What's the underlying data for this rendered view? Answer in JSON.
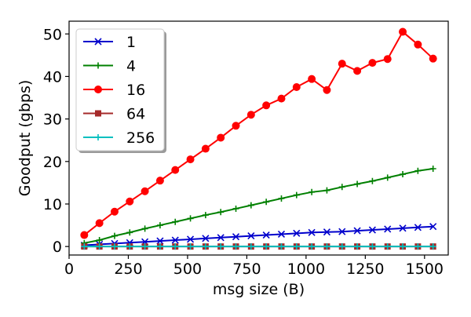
{
  "chart_data": {
    "type": "line",
    "xlabel": "msg size (B)",
    "ylabel": "Goodput (gbps)",
    "xlim": [
      0,
      1600
    ],
    "ylim": [
      -2,
      53
    ],
    "xticks": [
      0,
      250,
      500,
      750,
      1000,
      1250,
      1500
    ],
    "xtick_labels": [
      "0",
      "250",
      "500",
      "750",
      "1000",
      "1250",
      "1500"
    ],
    "yticks": [
      0,
      10,
      20,
      30,
      40,
      50
    ],
    "ytick_labels": [
      "0",
      "10",
      "20",
      "30",
      "40",
      "50"
    ],
    "grid": false,
    "legend_position": "top-left",
    "x": [
      64,
      128,
      192,
      256,
      320,
      384,
      448,
      512,
      576,
      640,
      704,
      768,
      832,
      896,
      960,
      1024,
      1088,
      1152,
      1216,
      1280,
      1344,
      1408,
      1472,
      1536
    ],
    "series": [
      {
        "name": "1",
        "color": "#0000cc",
        "marker": "x",
        "values": [
          0.3,
          0.5,
          0.7,
          0.9,
          1.1,
          1.3,
          1.5,
          1.7,
          1.9,
          2.1,
          2.3,
          2.5,
          2.7,
          2.9,
          3.1,
          3.3,
          3.4,
          3.5,
          3.7,
          3.9,
          4.1,
          4.3,
          4.5,
          4.7
        ]
      },
      {
        "name": "4",
        "color": "#008000",
        "marker": "plus",
        "values": [
          0.8,
          1.5,
          2.5,
          3.3,
          4.2,
          5.0,
          5.8,
          6.6,
          7.4,
          8.1,
          8.9,
          9.7,
          10.5,
          11.3,
          12.1,
          12.8,
          13.2,
          14.0,
          14.7,
          15.4,
          16.2,
          17.0,
          17.8,
          18.3
        ]
      },
      {
        "name": "16",
        "color": "#ff0000",
        "marker": "circle",
        "values": [
          2.7,
          5.5,
          8.2,
          10.6,
          13.0,
          15.5,
          18.0,
          20.5,
          23.0,
          25.6,
          28.4,
          31.0,
          33.2,
          34.8,
          37.5,
          39.4,
          36.8,
          43.0,
          41.3,
          43.2,
          44.1,
          50.5,
          47.5,
          44.2
        ]
      },
      {
        "name": "64",
        "color": "#a52a2a",
        "marker": "square",
        "values": [
          0,
          0,
          0,
          0,
          0,
          0,
          0,
          0,
          0,
          0,
          0,
          0,
          0,
          0,
          0,
          0,
          0,
          0,
          0,
          0,
          0,
          0,
          0,
          0
        ]
      },
      {
        "name": "256",
        "color": "#00bfbf",
        "marker": "plus",
        "values": [
          0,
          0,
          0,
          0,
          0,
          0,
          0,
          0,
          0,
          0,
          0,
          0,
          0,
          0,
          0,
          0,
          0,
          0,
          0,
          0,
          0,
          0,
          0,
          0
        ]
      }
    ]
  }
}
